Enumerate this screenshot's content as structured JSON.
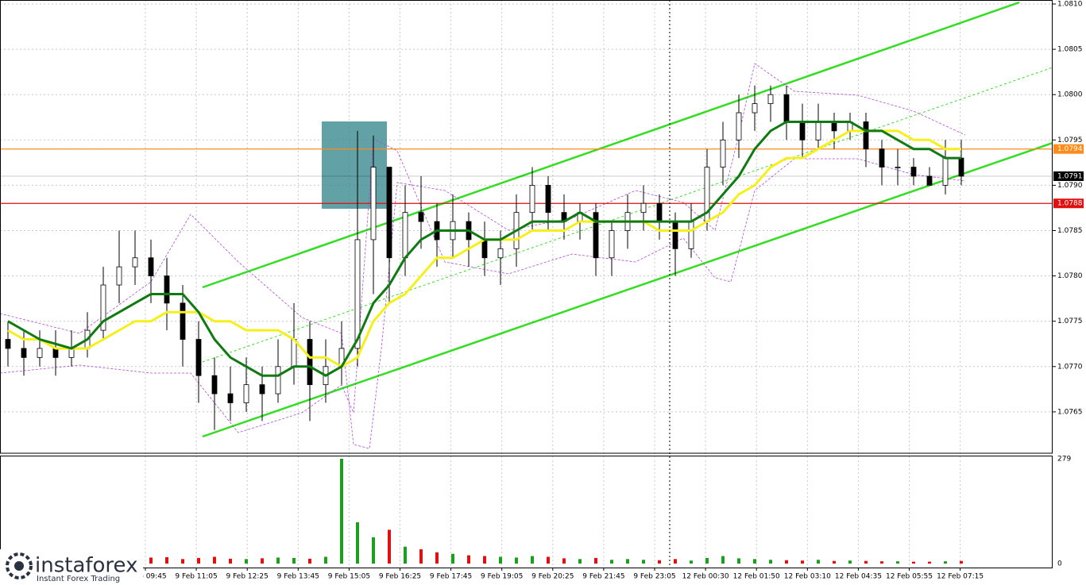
{
  "chart_data": {
    "type": "candlestick",
    "ylim": [
      1.076,
      1.081
    ],
    "yticks": [
      {
        "value": 1.081,
        "label": "1.0810"
      },
      1.0805,
      {
        "value": 1.08,
        "label": "1.0800"
      },
      1.0795,
      {
        "value": 1.079,
        "label": "1.0790"
      },
      1.0785,
      {
        "value": 1.078,
        "label": "1.0780"
      },
      1.0775,
      {
        "value": 1.077,
        "label": "1.0770"
      },
      1.0765
    ],
    "grid": true,
    "xtick_labels": [
      "9 Feb 09:45",
      "9 Feb 11:05",
      "9 Feb 12:25",
      "9 Feb 13:45",
      "9 Feb 15:05",
      "9 Feb 16:25",
      "9 Feb 17:45",
      "9 Feb 19:05",
      "9 Feb 20:25",
      "9 Feb 21:45",
      "9 Feb 23:05",
      "12 Feb 00:30",
      "12 Feb 01:50",
      "12 Feb 03:10",
      "12 Feb 04:35",
      "12 Feb 05:55",
      "12 Feb 07:15"
    ],
    "open": [
      1.0773,
      1.0772,
      1.0771,
      1.0772,
      1.0771,
      1.0772,
      1.0774,
      1.0779,
      1.0781,
      1.0782,
      1.078,
      1.0777,
      1.0773,
      1.0769,
      1.0767,
      1.0766,
      1.0768,
      1.0767,
      1.077,
      1.0773,
      1.0768,
      1.077,
      1.0772,
      1.0784,
      1.0792,
      1.0782,
      1.0787,
      1.0786,
      1.0784,
      1.0786,
      1.0784,
      1.0782,
      1.0783,
      1.0787,
      1.079,
      1.0787,
      1.0786,
      1.0787,
      1.0782,
      1.0785,
      1.0787,
      1.0788,
      1.0786,
      1.0783,
      1.0786,
      1.0792,
      1.0795,
      1.0798,
      1.0799,
      1.08,
      1.0797,
      1.0795,
      1.0797,
      1.0796,
      1.0797,
      1.0794,
      1.0792,
      1.0792,
      1.0791,
      1.079,
      1.0793
    ],
    "high": [
      1.0775,
      1.0774,
      1.0774,
      1.0774,
      1.0774,
      1.0776,
      1.0781,
      1.0785,
      1.0785,
      1.0784,
      1.0782,
      1.0779,
      1.0775,
      1.0771,
      1.077,
      1.0771,
      1.077,
      1.0773,
      1.0777,
      1.0775,
      1.0773,
      1.0775,
      1.0796,
      1.07955,
      1.0792,
      1.079,
      1.0791,
      1.0788,
      1.0789,
      1.0787,
      1.0786,
      1.0785,
      1.0789,
      1.0792,
      1.0791,
      1.0789,
      1.0788,
      1.0788,
      1.0786,
      1.0789,
      1.079,
      1.0789,
      1.0787,
      1.0788,
      1.0794,
      1.0797,
      1.08,
      1.0801,
      1.0801,
      1.0801,
      1.0799,
      1.0799,
      1.0798,
      1.0798,
      1.0798,
      1.0795,
      1.0794,
      1.0793,
      1.0792,
      1.0795,
      1.0795
    ],
    "low": [
      1.077,
      1.0769,
      1.077,
      1.0769,
      1.077,
      1.0771,
      1.0773,
      1.0777,
      1.0779,
      1.0777,
      1.0774,
      1.077,
      1.0766,
      1.0763,
      1.0764,
      1.0765,
      1.0764,
      1.0766,
      1.0768,
      1.0764,
      1.0766,
      1.0768,
      1.077,
      1.0778,
      1.0777,
      1.078,
      1.0783,
      1.0781,
      1.0782,
      1.0781,
      1.078,
      1.0779,
      1.0781,
      1.0785,
      1.0785,
      1.0784,
      1.0784,
      1.078,
      1.078,
      1.0783,
      1.0785,
      1.0784,
      1.078,
      1.0782,
      1.0785,
      1.079,
      1.0793,
      1.0796,
      1.0797,
      1.0795,
      1.0793,
      1.0794,
      1.0794,
      1.0795,
      1.0792,
      1.079,
      1.079,
      1.079,
      1.079,
      1.0789,
      1.079
    ],
    "close": [
      1.0772,
      1.0771,
      1.0772,
      1.0771,
      1.0772,
      1.0774,
      1.0779,
      1.0781,
      1.0782,
      1.078,
      1.0777,
      1.0773,
      1.0769,
      1.0767,
      1.0766,
      1.0768,
      1.0767,
      1.077,
      1.0773,
      1.0768,
      1.077,
      1.0772,
      1.0784,
      1.0792,
      1.0782,
      1.0787,
      1.0786,
      1.0784,
      1.0786,
      1.0784,
      1.0782,
      1.0783,
      1.0787,
      1.079,
      1.0787,
      1.0786,
      1.0787,
      1.0782,
      1.0785,
      1.0787,
      1.0788,
      1.0786,
      1.0783,
      1.0786,
      1.0792,
      1.0795,
      1.0798,
      1.0799,
      1.08,
      1.0797,
      1.0795,
      1.0797,
      1.0796,
      1.0797,
      1.0794,
      1.0792,
      1.0792,
      1.0791,
      1.079,
      1.0793,
      1.0791
    ],
    "ma_fast": {
      "color": "#0f7a12",
      "values": [
        1.0775,
        1.0774,
        1.0773,
        1.07725,
        1.0772,
        1.0773,
        1.0775,
        1.0776,
        1.0777,
        1.0778,
        1.0778,
        1.0778,
        1.0776,
        1.0773,
        1.0771,
        1.077,
        1.0769,
        1.0769,
        1.077,
        1.077,
        1.0769,
        1.077,
        1.0773,
        1.0777,
        1.0779,
        1.0782,
        1.0784,
        1.0785,
        1.0785,
        1.0785,
        1.0784,
        1.0784,
        1.0785,
        1.0786,
        1.0786,
        1.0786,
        1.0787,
        1.0786,
        1.0786,
        1.0786,
        1.0786,
        1.0786,
        1.0786,
        1.0786,
        1.0787,
        1.0789,
        1.0791,
        1.0794,
        1.0796,
        1.0797,
        1.0797,
        1.0797,
        1.0797,
        1.0797,
        1.0796,
        1.0796,
        1.0795,
        1.0794,
        1.0794,
        1.0793,
        1.0793
      ]
    },
    "ma_slow": {
      "color": "#f5f01a",
      "values": [
        1.0774,
        1.0773,
        1.0773,
        1.0772,
        1.0772,
        1.0772,
        1.0773,
        1.0774,
        1.0775,
        1.0775,
        1.0776,
        1.0776,
        1.0776,
        1.0775,
        1.0775,
        1.0774,
        1.0774,
        1.0774,
        1.0773,
        1.0771,
        1.0771,
        1.077,
        1.0771,
        1.0775,
        1.0777,
        1.0778,
        1.078,
        1.0782,
        1.0782,
        1.0783,
        1.0784,
        1.0784,
        1.0784,
        1.0785,
        1.0785,
        1.0785,
        1.0786,
        1.0786,
        1.0786,
        1.0786,
        1.0786,
        1.0785,
        1.0785,
        1.0785,
        1.0786,
        1.0787,
        1.0789,
        1.079,
        1.0792,
        1.0793,
        1.0793,
        1.0794,
        1.0795,
        1.0796,
        1.0796,
        1.0796,
        1.0796,
        1.0795,
        1.0795,
        1.0794,
        1.0794
      ]
    },
    "levels": [
      {
        "value": 1.0794,
        "color": "#ff8c1a"
      },
      {
        "value": 1.0791,
        "color": "#000000"
      },
      {
        "value": 1.0788,
        "color": "#e01010"
      }
    ],
    "volume": [
      12,
      10,
      14,
      11,
      13,
      15,
      12,
      18,
      14,
      16,
      17,
      12,
      15,
      18,
      13,
      12,
      14,
      16,
      15,
      13,
      18,
      279,
      110,
      70,
      90,
      45,
      38,
      30,
      26,
      22,
      20,
      18,
      16,
      20,
      18,
      14,
      12,
      15,
      10,
      12,
      10,
      9,
      12,
      8,
      15,
      20,
      14,
      12,
      10,
      9,
      8,
      10,
      7,
      8,
      7,
      6,
      6,
      5,
      5,
      6,
      7
    ],
    "volume_ylim": [
      0,
      279
    ],
    "volume_yticks": [
      279,
      0
    ]
  },
  "logo": {
    "name": "instaforex",
    "tagline": "Instant Forex Trading"
  }
}
